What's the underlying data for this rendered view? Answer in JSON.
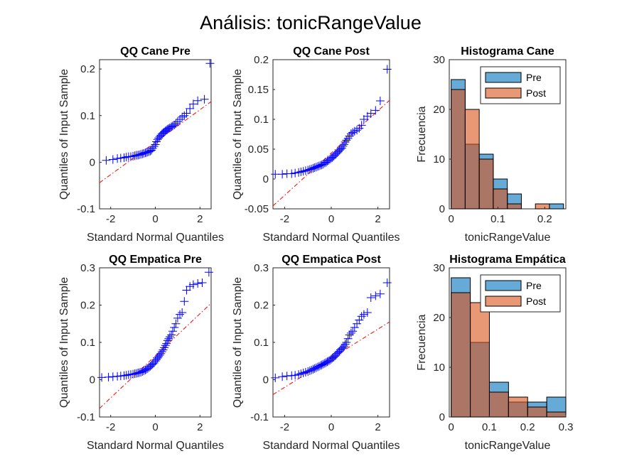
{
  "figure": {
    "title": "Análisis: tonicRangeValue"
  },
  "colors": {
    "qq_marker": "#0000ff",
    "ref_line": "#ff0000",
    "pre_fill": "#0072bd",
    "post_fill": "#d95319",
    "axis": "#262626"
  },
  "chart_data": [
    {
      "type": "scatter",
      "title": "QQ Cane Pre",
      "xlabel": "Standard Normal Quantiles",
      "ylabel": "Quantiles of Input Sample",
      "xlim": [
        -2.5,
        2.5
      ],
      "ylim": [
        -0.1,
        0.22
      ],
      "xticks": [
        -2,
        0,
        2
      ],
      "yticks": [
        -0.1,
        0,
        0.1,
        0.2
      ],
      "yticklabels": [
        "-0.1",
        "0",
        "0.1",
        "0.2"
      ],
      "ref_line": [
        [
          -2.5,
          -0.044
        ],
        [
          2.5,
          0.13
        ]
      ],
      "marker": "+",
      "x": [
        -2.2,
        -1.9,
        -1.7,
        -1.55,
        -1.4,
        -1.3,
        -1.2,
        -1.1,
        -1.0,
        -0.92,
        -0.85,
        -0.78,
        -0.72,
        -0.65,
        -0.58,
        -0.52,
        -0.45,
        -0.4,
        -0.34,
        -0.28,
        -0.22,
        -0.17,
        -0.12,
        -0.06,
        0.0,
        0.05,
        0.1,
        0.15,
        0.2,
        0.25,
        0.3,
        0.35,
        0.4,
        0.45,
        0.5,
        0.55,
        0.6,
        0.65,
        0.72,
        0.78,
        0.85,
        0.92,
        1.0,
        1.1,
        1.2,
        1.3,
        1.4,
        1.55,
        1.7,
        1.9,
        2.2,
        2.45
      ],
      "y": [
        0.004,
        0.006,
        0.008,
        0.009,
        0.01,
        0.011,
        0.012,
        0.012,
        0.013,
        0.014,
        0.015,
        0.015,
        0.016,
        0.017,
        0.018,
        0.019,
        0.02,
        0.021,
        0.022,
        0.023,
        0.024,
        0.026,
        0.03,
        0.034,
        0.038,
        0.044,
        0.049,
        0.052,
        0.055,
        0.058,
        0.061,
        0.063,
        0.065,
        0.067,
        0.069,
        0.071,
        0.072,
        0.074,
        0.076,
        0.078,
        0.08,
        0.083,
        0.087,
        0.092,
        0.097,
        0.1,
        0.105,
        0.115,
        0.125,
        0.132,
        0.135,
        0.212
      ]
    },
    {
      "type": "scatter",
      "title": "QQ Cane Post",
      "xlabel": "Standard Normal Quantiles",
      "ylabel": "Quantiles of Input Sample",
      "xlim": [
        -2.5,
        2.5
      ],
      "ylim": [
        -0.05,
        0.2
      ],
      "xticks": [
        -2,
        0,
        2
      ],
      "yticks": [
        -0.05,
        0,
        0.05,
        0.1,
        0.15,
        0.2
      ],
      "yticklabels": [
        "-0.05",
        "0",
        "0.05",
        "0.1",
        "0.15",
        "0.2"
      ],
      "ref_line": [
        [
          -2.5,
          -0.045
        ],
        [
          2.5,
          0.132
        ]
      ],
      "marker": "+",
      "x": [
        -2.4,
        -2.1,
        -1.9,
        -1.7,
        -1.55,
        -1.4,
        -1.3,
        -1.2,
        -1.1,
        -1.0,
        -0.92,
        -0.85,
        -0.78,
        -0.72,
        -0.65,
        -0.58,
        -0.52,
        -0.45,
        -0.4,
        -0.34,
        -0.28,
        -0.22,
        -0.17,
        -0.12,
        -0.06,
        0.0,
        0.05,
        0.1,
        0.15,
        0.2,
        0.25,
        0.3,
        0.35,
        0.4,
        0.45,
        0.5,
        0.55,
        0.6,
        0.65,
        0.72,
        0.78,
        0.85,
        0.92,
        1.0,
        1.1,
        1.2,
        1.3,
        1.4,
        1.55,
        1.7,
        1.9,
        2.1,
        2.4
      ],
      "y": [
        0.008,
        0.008,
        0.009,
        0.009,
        0.01,
        0.011,
        0.012,
        0.013,
        0.014,
        0.015,
        0.016,
        0.017,
        0.018,
        0.019,
        0.02,
        0.021,
        0.022,
        0.023,
        0.024,
        0.025,
        0.027,
        0.028,
        0.03,
        0.031,
        0.033,
        0.035,
        0.036,
        0.038,
        0.04,
        0.042,
        0.044,
        0.046,
        0.048,
        0.05,
        0.052,
        0.055,
        0.058,
        0.062,
        0.065,
        0.068,
        0.072,
        0.076,
        0.078,
        0.08,
        0.082,
        0.085,
        0.09,
        0.1,
        0.105,
        0.11,
        0.115,
        0.131,
        0.184
      ]
    },
    {
      "type": "bar",
      "title": "Histograma Cane",
      "xlabel": "tonicRangeValue",
      "ylabel": "Frecuencia",
      "xlim": [
        -0.004,
        0.245
      ],
      "ylim": [
        0,
        30
      ],
      "xticks": [
        0,
        0.1,
        0.2
      ],
      "xticklabels": [
        "0",
        "0.1",
        "0.2"
      ],
      "yticks": [
        0,
        10,
        20,
        30
      ],
      "bin_edges": [
        0,
        0.03,
        0.06,
        0.09,
        0.12,
        0.15,
        0.18,
        0.21,
        0.24
      ],
      "legend": "top-right",
      "series": [
        {
          "name": "Pre",
          "values": [
            26,
            13,
            11,
            6,
            3,
            0,
            0,
            1
          ]
        },
        {
          "name": "Post",
          "values": [
            24,
            20,
            10,
            4,
            1,
            0,
            1,
            0
          ]
        }
      ]
    },
    {
      "type": "scatter",
      "title": "QQ Empatica Pre",
      "xlabel": "Standard Normal Quantiles",
      "ylabel": "Quantiles of Input Sample",
      "xlim": [
        -2.5,
        2.5
      ],
      "ylim": [
        -0.1,
        0.3
      ],
      "xticks": [
        -2,
        0,
        2
      ],
      "yticks": [
        -0.1,
        0,
        0.1,
        0.2,
        0.3
      ],
      "yticklabels": [
        "-0.1",
        "0",
        "0.1",
        "0.2",
        "0.3"
      ],
      "ref_line": [
        [
          -2.5,
          -0.077
        ],
        [
          2.5,
          0.205
        ]
      ],
      "marker": "+",
      "x": [
        -2.4,
        -2.1,
        -1.9,
        -1.7,
        -1.55,
        -1.4,
        -1.3,
        -1.2,
        -1.1,
        -1.0,
        -0.92,
        -0.85,
        -0.78,
        -0.72,
        -0.65,
        -0.58,
        -0.52,
        -0.45,
        -0.4,
        -0.34,
        -0.28,
        -0.22,
        -0.17,
        -0.12,
        -0.06,
        0.0,
        0.05,
        0.1,
        0.15,
        0.2,
        0.25,
        0.3,
        0.35,
        0.4,
        0.45,
        0.5,
        0.55,
        0.6,
        0.65,
        0.72,
        0.78,
        0.85,
        0.92,
        1.0,
        1.1,
        1.2,
        1.3,
        1.4,
        1.55,
        1.7,
        1.9,
        2.1,
        2.4
      ],
      "y": [
        0.006,
        0.007,
        0.008,
        0.009,
        0.01,
        0.011,
        0.012,
        0.013,
        0.014,
        0.015,
        0.016,
        0.017,
        0.018,
        0.019,
        0.02,
        0.022,
        0.024,
        0.026,
        0.028,
        0.03,
        0.033,
        0.036,
        0.039,
        0.042,
        0.045,
        0.05,
        0.054,
        0.058,
        0.062,
        0.066,
        0.07,
        0.075,
        0.08,
        0.086,
        0.092,
        0.097,
        0.105,
        0.11,
        0.115,
        0.12,
        0.13,
        0.14,
        0.15,
        0.165,
        0.175,
        0.18,
        0.21,
        0.24,
        0.25,
        0.255,
        0.258,
        0.26,
        0.288
      ]
    },
    {
      "type": "scatter",
      "title": "QQ Empatica Post",
      "xlabel": "Standard Normal Quantiles",
      "ylabel": "Quantiles of Input Sample",
      "xlim": [
        -2.5,
        2.5
      ],
      "ylim": [
        -0.1,
        0.3
      ],
      "xticks": [
        -2,
        0,
        2
      ],
      "yticks": [
        -0.1,
        0,
        0.1,
        0.2,
        0.3
      ],
      "yticklabels": [
        "-0.1",
        "0",
        "0.1",
        "0.2",
        "0.3"
      ],
      "ref_line": [
        [
          -2.5,
          -0.04
        ],
        [
          2.5,
          0.155
        ]
      ],
      "marker": "+",
      "x": [
        -2.4,
        -2.1,
        -1.9,
        -1.7,
        -1.55,
        -1.4,
        -1.3,
        -1.2,
        -1.1,
        -1.0,
        -0.92,
        -0.85,
        -0.78,
        -0.72,
        -0.65,
        -0.58,
        -0.52,
        -0.45,
        -0.4,
        -0.34,
        -0.28,
        -0.22,
        -0.17,
        -0.12,
        -0.06,
        0.0,
        0.05,
        0.1,
        0.15,
        0.2,
        0.25,
        0.3,
        0.35,
        0.4,
        0.45,
        0.5,
        0.55,
        0.6,
        0.65,
        0.72,
        0.78,
        0.85,
        0.92,
        1.0,
        1.1,
        1.2,
        1.3,
        1.4,
        1.55,
        1.7,
        1.9,
        2.1,
        2.4
      ],
      "y": [
        0.005,
        0.008,
        0.01,
        0.011,
        0.012,
        0.014,
        0.016,
        0.018,
        0.02,
        0.022,
        0.024,
        0.026,
        0.028,
        0.03,
        0.032,
        0.034,
        0.036,
        0.038,
        0.04,
        0.042,
        0.044,
        0.046,
        0.048,
        0.05,
        0.052,
        0.055,
        0.058,
        0.06,
        0.063,
        0.066,
        0.07,
        0.073,
        0.076,
        0.08,
        0.083,
        0.086,
        0.09,
        0.095,
        0.1,
        0.11,
        0.12,
        0.125,
        0.13,
        0.14,
        0.15,
        0.16,
        0.17,
        0.175,
        0.18,
        0.22,
        0.225,
        0.23,
        0.26
      ]
    },
    {
      "type": "bar",
      "title": "Histograma Empática",
      "xlabel": "tonicRangeValue",
      "ylabel": "Frecuencia",
      "xlim": [
        -0.005,
        0.3
      ],
      "ylim": [
        0,
        30
      ],
      "xticks": [
        0,
        0.1,
        0.2,
        0.3
      ],
      "xticklabels": [
        "0",
        "0.1",
        "0.2",
        "0.3"
      ],
      "yticks": [
        0,
        10,
        20,
        30
      ],
      "bin_edges": [
        0,
        0.05,
        0.1,
        0.15,
        0.2,
        0.25,
        0.3
      ],
      "legend": "top-right",
      "series": [
        {
          "name": "Pre",
          "values": [
            28,
            15,
            7,
            3,
            3,
            4
          ]
        },
        {
          "name": "Post",
          "values": [
            25,
            23,
            5,
            4,
            2,
            1
          ]
        }
      ]
    }
  ]
}
